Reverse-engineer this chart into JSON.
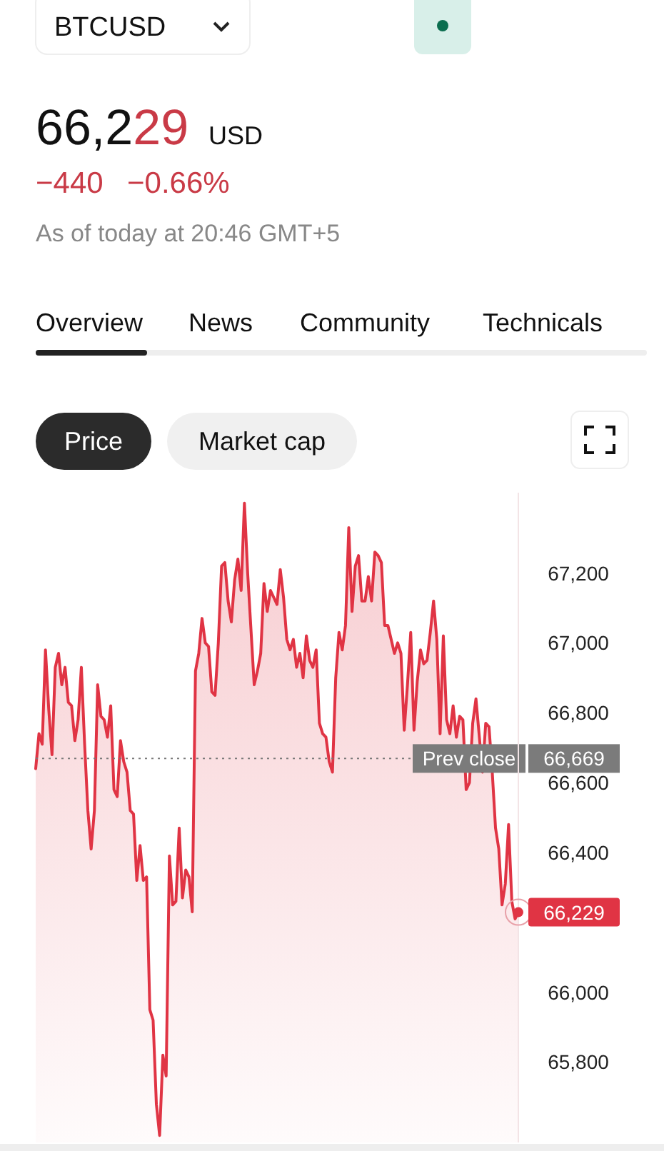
{
  "chart_data": {
    "type": "area",
    "title": "BTCUSD",
    "annotations": [
      "66,229",
      "USD",
      "−440",
      "−0.66%",
      "As of today at 20:46 GMT+5",
      "Overview",
      "News",
      "Community",
      "Technicals",
      "Price",
      "Market cap",
      "66,669"
    ],
    "categories": [
      null,
      null,
      null,
      null,
      null,
      null,
      null,
      null,
      null,
      null,
      null,
      null,
      null,
      null,
      null,
      null,
      null,
      null,
      null,
      null,
      null,
      null,
      null,
      null,
      null,
      null,
      null,
      null,
      null,
      null,
      null,
      null,
      null,
      null,
      null,
      null,
      null,
      null,
      null,
      null,
      null,
      null,
      null,
      null,
      null,
      null,
      null,
      null,
      null,
      null,
      null,
      null,
      null,
      null,
      null,
      null,
      null,
      null,
      null,
      null,
      null,
      null,
      null,
      null,
      null,
      null,
      null,
      null,
      null,
      null,
      null,
      null,
      null,
      null,
      null,
      null,
      null,
      null,
      null,
      null,
      null,
      null,
      null,
      null,
      null,
      null,
      null,
      null,
      null,
      null,
      null,
      null,
      null,
      null,
      null,
      null,
      null,
      null,
      null,
      null,
      null,
      null,
      null,
      null,
      null,
      null,
      null,
      null,
      null,
      null,
      null,
      null,
      null,
      null,
      null,
      null,
      null,
      null,
      null,
      null,
      null,
      null,
      null,
      null,
      null,
      null,
      null,
      null,
      null,
      null,
      null,
      null,
      null,
      null,
      null,
      null,
      null,
      null,
      null,
      null,
      null,
      null,
      null,
      null,
      null,
      null,
      null,
      null,
      null
    ],
    "series": [
      {
        "color": "#e03444",
        "values": [
          66640,
          66740,
          66710,
          66980,
          66810,
          66680,
          66930,
          66970,
          66880,
          66930,
          66830,
          66820,
          66720,
          66780,
          66930,
          66710,
          66520,
          66410,
          66520,
          66880,
          66790,
          66780,
          66730,
          66820,
          66580,
          66560,
          66720,
          66660,
          66630,
          66520,
          66510,
          66320,
          66420,
          66320,
          66330,
          65950,
          65920,
          65680,
          65590,
          65820,
          65760,
          66390,
          66250,
          66260,
          66470,
          66270,
          66350,
          66330,
          66230,
          66920,
          66970,
          67070,
          67000,
          66990,
          66860,
          66850,
          67000,
          67220,
          67230,
          67120,
          67060,
          67180,
          67240,
          67150,
          67400,
          67200,
          67040,
          66880,
          66920,
          66970,
          67170,
          67090,
          67150,
          67130,
          67110,
          67210,
          67130,
          67010,
          66980,
          67010,
          66930,
          66970,
          66900,
          67020,
          66950,
          66930,
          66980,
          66770,
          66740,
          66730,
          66660,
          66630,
          66900,
          67030,
          66980,
          67050,
          67330,
          67090,
          67220,
          67250,
          67120,
          67120,
          67190,
          67120,
          67260,
          67250,
          67230,
          67050,
          67050,
          67010,
          66970,
          67000,
          66970,
          66750,
          66880,
          67030,
          66750,
          66890,
          66980,
          66940,
          66950,
          67030,
          67120,
          67010,
          66740,
          67020,
          66780,
          66740,
          66820,
          66730,
          66790,
          66780,
          66580,
          66600,
          66770,
          66840,
          null,
          66630,
          66770,
          66760,
          66630,
          66470,
          66410,
          66250,
          66310,
          66480,
          66260,
          66210,
          66229
        ],
        "value_labels": [
          null,
          null,
          null,
          null,
          null,
          null,
          null,
          null,
          null,
          null,
          null,
          null,
          null,
          null,
          null,
          null,
          null,
          null,
          null,
          null,
          null,
          null,
          null,
          null,
          null,
          null,
          null,
          null,
          null,
          null,
          null,
          null,
          null,
          null,
          null,
          null,
          null,
          null,
          null,
          null,
          null,
          null,
          null,
          null,
          null,
          null,
          null,
          null,
          null,
          null,
          null,
          null,
          null,
          null,
          null,
          null,
          null,
          null,
          null,
          null,
          null,
          null,
          null,
          null,
          null,
          null,
          null,
          null,
          null,
          null,
          null,
          null,
          null,
          null,
          null,
          null,
          null,
          null,
          null,
          null,
          null,
          null,
          null,
          null,
          null,
          null,
          null,
          null,
          null,
          null,
          null,
          null,
          null,
          null,
          null,
          null,
          null,
          null,
          null,
          null,
          null,
          null,
          null,
          null,
          null,
          null,
          null,
          null,
          null,
          null,
          null,
          null,
          null,
          null,
          null,
          null,
          null,
          null,
          null,
          null,
          null,
          null,
          null,
          null,
          null,
          null,
          null,
          null,
          null,
          null,
          null,
          null,
          null,
          null,
          null,
          null,
          null,
          null,
          null,
          null,
          null,
          null,
          null,
          null,
          null,
          null,
          null,
          null,
          "66,229"
        ]
      }
    ],
    "ylim": [
      65570,
      67430
    ],
    "yticks": [
      {
        "value": 65800,
        "label": "65,800"
      },
      {
        "value": 66000,
        "label": "66,000"
      },
      {
        "value": 66400,
        "label": "66,400"
      },
      {
        "value": 66600,
        "label": "66,600"
      },
      {
        "value": 66800,
        "label": "66,800"
      },
      {
        "value": 67000,
        "label": "67,000"
      },
      {
        "value": 67200,
        "label": "67,200"
      }
    ],
    "tick_labels": "y",
    "grid": false,
    "ref_lines": [
      {
        "axis": "y",
        "value": 66669,
        "label": "Prev close",
        "line_style": "dotted",
        "color": "#777777"
      }
    ]
  }
}
